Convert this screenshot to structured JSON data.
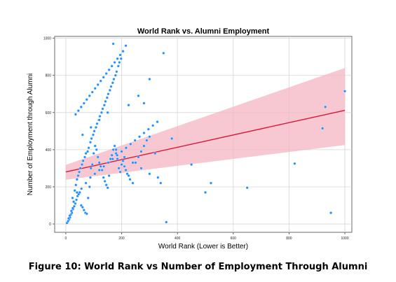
{
  "caption": "Figure 10: World Rank vs Number of Employment Through Alumni",
  "chart_data": {
    "type": "scatter",
    "title": "World Rank vs. Alumni Employment",
    "xlabel": "World Rank (Lower is Better)",
    "ylabel": "Number of Employment through Alumni",
    "xlim": [
      -40,
      1025
    ],
    "ylim": [
      -45,
      1010
    ],
    "xticks": [
      0,
      200,
      400,
      600,
      800,
      1000
    ],
    "yticks": [
      0,
      200,
      400,
      600,
      800,
      1000
    ],
    "grid": true,
    "point_color": "#1e90ff",
    "line_color": "#dc143c",
    "band_color": "#f4b6c2",
    "regression": {
      "x": [
        0,
        1000
      ],
      "y": [
        280,
        612
      ],
      "ci_lower": [
        238,
        425
      ],
      "ci_upper": [
        318,
        840
      ]
    },
    "x": [
      4,
      8,
      12,
      15,
      18,
      22,
      26,
      30,
      34,
      38,
      42,
      46,
      50,
      55,
      60,
      65,
      70,
      75,
      80,
      85,
      90,
      95,
      100,
      105,
      110,
      115,
      120,
      125,
      130,
      135,
      140,
      145,
      150,
      155,
      160,
      165,
      170,
      175,
      180,
      185,
      190,
      195,
      200,
      205,
      210,
      215,
      220,
      225,
      230,
      240,
      250,
      260,
      270,
      280,
      290,
      300,
      320,
      340,
      360,
      380,
      10,
      14,
      20,
      25,
      28,
      32,
      36,
      40,
      44,
      48,
      52,
      58,
      62,
      68,
      72,
      78,
      82,
      88,
      92,
      98,
      102,
      108,
      112,
      118,
      122,
      128,
      132,
      138,
      142,
      148,
      152,
      158,
      162,
      168,
      172,
      178,
      182,
      188,
      192,
      198,
      24,
      40,
      56,
      72,
      88,
      104,
      120,
      136,
      152,
      168,
      184,
      200,
      216,
      232,
      248,
      264,
      280,
      296,
      312,
      328,
      35,
      45,
      55,
      65,
      75,
      85,
      95,
      105,
      115,
      125,
      135,
      145,
      155,
      165,
      175,
      185,
      195,
      205,
      215,
      225,
      60,
      90,
      120,
      150,
      180,
      210,
      240,
      270,
      300,
      330,
      450,
      500,
      520,
      650,
      820,
      920,
      930,
      950,
      1000,
      350,
      300,
      280,
      260,
      170
    ],
    "y": [
      5,
      15,
      25,
      35,
      50,
      60,
      80,
      95,
      110,
      130,
      150,
      160,
      170,
      100,
      90,
      75,
      60,
      55,
      140,
      200,
      300,
      320,
      380,
      420,
      400,
      360,
      330,
      310,
      290,
      250,
      230,
      210,
      195,
      260,
      350,
      370,
      400,
      420,
      380,
      350,
      300,
      280,
      320,
      340,
      310,
      290,
      270,
      260,
      240,
      220,
      330,
      360,
      390,
      420,
      450,
      470,
      380,
      220,
      10,
      460,
      30,
      45,
      70,
      85,
      120,
      180,
      210,
      240,
      260,
      280,
      300,
      320,
      340,
      360,
      380,
      390,
      410,
      440,
      460,
      480,
      500,
      520,
      540,
      560,
      580,
      600,
      620,
      640,
      660,
      680,
      700,
      720,
      740,
      760,
      780,
      800,
      820,
      850,
      870,
      890,
      140,
      170,
      190,
      220,
      250,
      270,
      290,
      310,
      330,
      350,
      370,
      390,
      410,
      430,
      450,
      470,
      490,
      510,
      530,
      550,
      590,
      610,
      630,
      650,
      670,
      690,
      710,
      730,
      750,
      770,
      790,
      810,
      830,
      850,
      870,
      890,
      910,
      930,
      960,
      640,
      480,
      520,
      560,
      600,
      400,
      360,
      330,
      300,
      270,
      250,
      320,
      170,
      220,
      195,
      325,
      515,
      630,
      60,
      715,
      920,
      780,
      650,
      690,
      970
    ]
  }
}
